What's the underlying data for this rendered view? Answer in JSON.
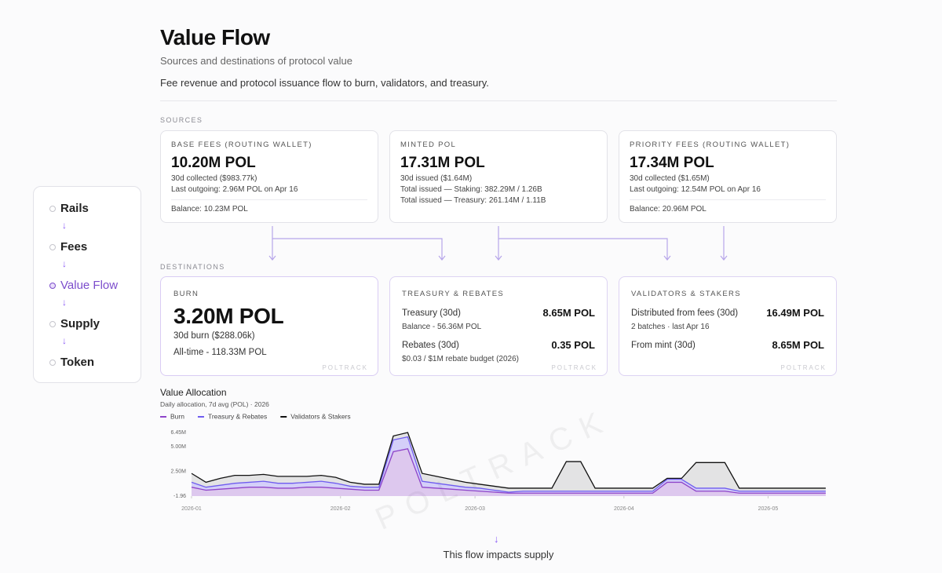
{
  "header": {
    "title": "Value Flow",
    "subtitle": "Sources and destinations of protocol value",
    "description": "Fee revenue and protocol issuance flow to burn, validators, and treasury."
  },
  "nav": {
    "items": [
      {
        "label": "Rails",
        "active": false
      },
      {
        "label": "Fees",
        "active": false
      },
      {
        "label": "Value Flow",
        "active": true
      },
      {
        "label": "Supply",
        "active": false
      },
      {
        "label": "Token",
        "active": false
      }
    ]
  },
  "sources": {
    "label": "SOURCES",
    "cards": [
      {
        "label": "BASE FEES (ROUTING WALLET)",
        "value": "10.20M POL",
        "lines": [
          "30d collected ($983.77k)",
          "Last outgoing: 2.96M POL on Apr 16"
        ],
        "balance": "Balance: 10.23M POL"
      },
      {
        "label": "MINTED POL",
        "value": "17.31M POL",
        "lines": [
          "30d issued ($1.64M)",
          "Total issued — Staking: 382.29M / 1.26B",
          "Total issued — Treasury: 261.14M / 1.11B"
        ]
      },
      {
        "label": "PRIORITY FEES (ROUTING WALLET)",
        "value": "17.34M POL",
        "lines": [
          "30d collected ($1.65M)",
          "Last outgoing: 12.54M POL on Apr 16"
        ],
        "balance": "Balance: 20.96M POL"
      }
    ]
  },
  "destinations": {
    "label": "DESTINATIONS",
    "watermark": "POLTRACK",
    "burn": {
      "label": "BURN",
      "value": "3.20M POL",
      "lines": [
        "30d burn ($288.06k)",
        "All-time - 118.33M POL"
      ]
    },
    "cards": [
      {
        "label": "TREASURY & REBATES",
        "rows": [
          {
            "name": "Treasury (30d)",
            "value": "8.65M POL",
            "note": "Balance - 56.36M POL"
          },
          {
            "name": "Rebates (30d)",
            "value": "0.35 POL",
            "note": "$0.03 / $1M rebate budget (2026)"
          }
        ]
      },
      {
        "label": "VALIDATORS & STAKERS",
        "rows": [
          {
            "name": "Distributed from fees (30d)",
            "value": "16.49M POL",
            "note": "2 batches · last Apr 16"
          },
          {
            "name": "From mint (30d)",
            "value": "8.65M POL"
          }
        ]
      }
    ]
  },
  "chart_data": {
    "type": "area",
    "stacked": true,
    "title": "Value Allocation",
    "subtitle": "Daily allocation, 7d avg (POL) · 2026",
    "watermark": "POLTRACK",
    "x": [
      0,
      3,
      6,
      9,
      12,
      15,
      18,
      21,
      24,
      27,
      30,
      33,
      36,
      39,
      42,
      45,
      48,
      51,
      54,
      57,
      60,
      63,
      66,
      69,
      72,
      75,
      78,
      81,
      84,
      87,
      90,
      93,
      96,
      99,
      102,
      105,
      108,
      111,
      114,
      117,
      120,
      123,
      126,
      129,
      132
    ],
    "xlim": [
      0,
      133
    ],
    "xticks": [
      {
        "value": 0,
        "label": "2026-01"
      },
      {
        "value": 31,
        "label": "2026-02"
      },
      {
        "value": 59,
        "label": "2026-03"
      },
      {
        "value": 90,
        "label": "2026-04"
      },
      {
        "value": 120,
        "label": "2026-05"
      }
    ],
    "ylim": [
      -1.96,
      6450000
    ],
    "yticks": [
      {
        "value": -1.96,
        "label": "-1.96"
      },
      {
        "value": 2500000,
        "label": "2.50M"
      },
      {
        "value": 5000000,
        "label": "5.00M"
      },
      {
        "value": 6450000,
        "label": "6.45M"
      }
    ],
    "series": [
      {
        "name": "Burn",
        "color": "#8e44c9",
        "values": [
          900000,
          600000,
          700000,
          800000,
          900000,
          900000,
          800000,
          800000,
          900000,
          900000,
          800000,
          700000,
          600000,
          600000,
          4500000,
          4800000,
          900000,
          800000,
          700000,
          600000,
          500000,
          400000,
          300000,
          300000,
          300000,
          300000,
          300000,
          300000,
          300000,
          300000,
          300000,
          300000,
          300000,
          1400000,
          1400000,
          500000,
          500000,
          500000,
          300000,
          300000,
          300000,
          300000,
          300000,
          300000,
          300000
        ]
      },
      {
        "name": "Treasury & Rebates",
        "color": "#6f5cf0",
        "values": [
          500000,
          300000,
          400000,
          500000,
          500000,
          600000,
          500000,
          500000,
          500000,
          600000,
          500000,
          300000,
          300000,
          300000,
          1200000,
          1200000,
          600000,
          500000,
          400000,
          300000,
          300000,
          200000,
          100000,
          200000,
          200000,
          200000,
          200000,
          200000,
          200000,
          200000,
          200000,
          200000,
          200000,
          300000,
          300000,
          300000,
          300000,
          300000,
          200000,
          200000,
          200000,
          200000,
          200000,
          200000,
          200000
        ]
      },
      {
        "name": "Validators & Stakers",
        "color": "#111111",
        "values": [
          900000,
          500000,
          700000,
          800000,
          700000,
          700000,
          700000,
          700000,
          600000,
          600000,
          600000,
          400000,
          300000,
          300000,
          400000,
          450000,
          800000,
          700000,
          600000,
          500000,
          400000,
          400000,
          400000,
          300000,
          300000,
          300000,
          3000000,
          3000000,
          300000,
          300000,
          300000,
          300000,
          300000,
          100000,
          100000,
          2600000,
          2600000,
          2600000,
          300000,
          300000,
          300000,
          300000,
          300000,
          300000,
          300000
        ]
      }
    ]
  },
  "footer": {
    "text": "This flow impacts supply"
  }
}
